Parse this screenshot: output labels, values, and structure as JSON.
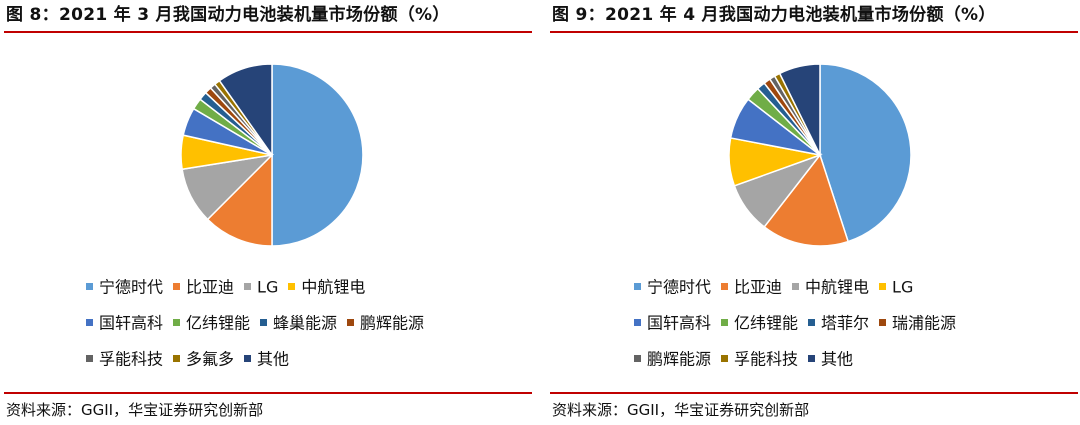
{
  "source_label": "资料来源：GGII，华宝证券研究创新部",
  "chart_data": [
    {
      "type": "pie",
      "title": "图 8：2021 年 3 月我国动力电池装机量市场份额（%）",
      "legend_position": "bottom",
      "slices": [
        {
          "name": "宁德时代",
          "value": 50.0,
          "color": "#5b9bd5"
        },
        {
          "name": "比亚迪",
          "value": 12.5,
          "color": "#ed7d31"
        },
        {
          "name": "LG",
          "value": 10.0,
          "color": "#a5a5a5"
        },
        {
          "name": "中航锂电",
          "value": 6.0,
          "color": "#ffc000"
        },
        {
          "name": "国轩高科",
          "value": 5.0,
          "color": "#4472c4"
        },
        {
          "name": "亿纬锂能",
          "value": 2.0,
          "color": "#70ad47"
        },
        {
          "name": "蜂巢能源",
          "value": 1.5,
          "color": "#255e91"
        },
        {
          "name": "鹏辉能源",
          "value": 1.2,
          "color": "#9e480e"
        },
        {
          "name": "孚能科技",
          "value": 1.0,
          "color": "#636363"
        },
        {
          "name": "多氟多",
          "value": 1.0,
          "color": "#997300"
        },
        {
          "name": "其他",
          "value": 9.8,
          "color": "#264478"
        }
      ],
      "legend_rows": [
        [
          0,
          1,
          2,
          3
        ],
        [
          4,
          5,
          6,
          7
        ],
        [
          8,
          9,
          10
        ]
      ]
    },
    {
      "type": "pie",
      "title": "图 9：2021 年 4 月我国动力电池装机量市场份额（%）",
      "legend_position": "bottom",
      "slices": [
        {
          "name": "宁德时代",
          "value": 45.0,
          "color": "#5b9bd5"
        },
        {
          "name": "比亚迪",
          "value": 15.5,
          "color": "#ed7d31"
        },
        {
          "name": "中航锂电",
          "value": 9.0,
          "color": "#a5a5a5"
        },
        {
          "name": "LG",
          "value": 8.5,
          "color": "#ffc000"
        },
        {
          "name": "国轩高科",
          "value": 7.5,
          "color": "#4472c4"
        },
        {
          "name": "亿纬锂能",
          "value": 2.5,
          "color": "#70ad47"
        },
        {
          "name": "塔菲尔",
          "value": 1.5,
          "color": "#255e91"
        },
        {
          "name": "瑞浦能源",
          "value": 1.2,
          "color": "#9e480e"
        },
        {
          "name": "鹏辉能源",
          "value": 1.0,
          "color": "#636363"
        },
        {
          "name": "孚能科技",
          "value": 1.0,
          "color": "#997300"
        },
        {
          "name": "其他",
          "value": 7.3,
          "color": "#264478"
        }
      ],
      "legend_rows": [
        [
          0,
          1,
          2,
          3
        ],
        [
          4,
          5,
          6,
          7
        ],
        [
          8,
          9,
          10
        ]
      ]
    }
  ]
}
